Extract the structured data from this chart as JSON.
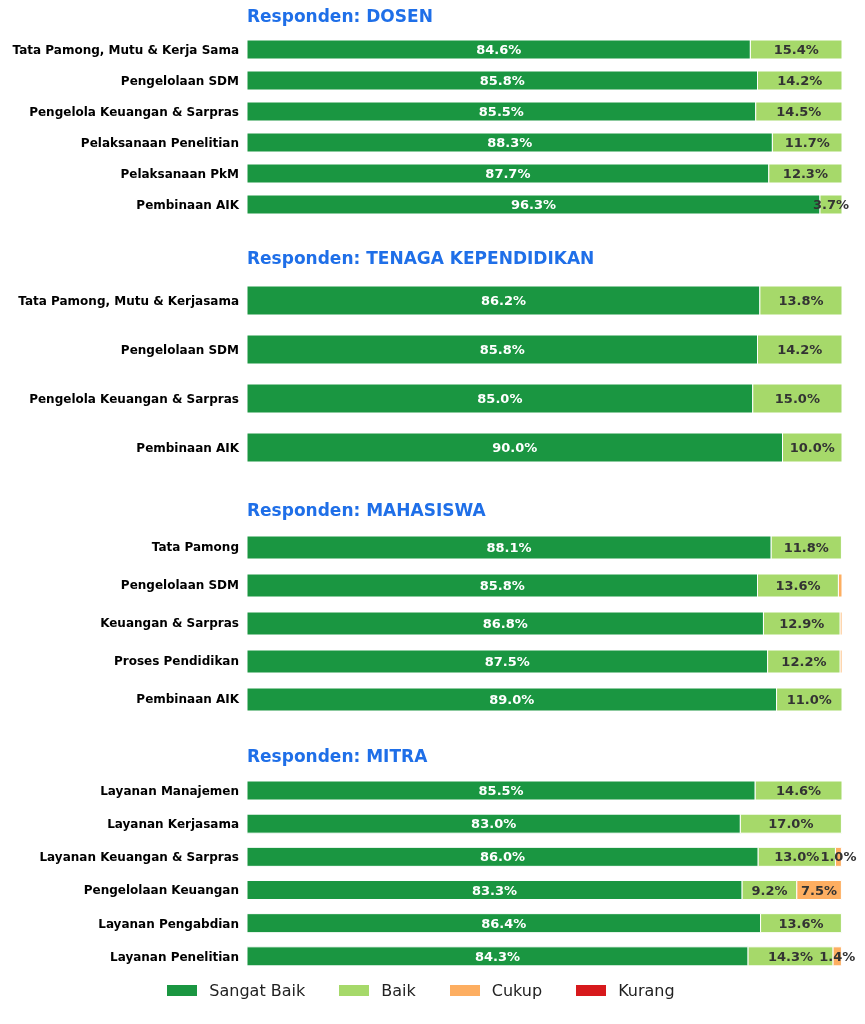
{
  "chart_data": [
    {
      "type": "bar",
      "orientation": "horizontal",
      "stacked": true,
      "title": "Responden: DOSEN",
      "legend": false,
      "categories": [
        "Tata Pamong, Mutu & Kerja Sama",
        "Pengelolaan SDM",
        "Pengelola Keuangan & Sarpras",
        "Pelaksanaan Penelitian",
        "Pelaksanaan PkM",
        "Pembinaan AIK"
      ],
      "series": [
        {
          "color": "#1a9641",
          "values": [
            84.6,
            85.8,
            85.5,
            88.3,
            87.7,
            96.3
          ],
          "value_labels": [
            "84.6%",
            "85.8%",
            "85.5%",
            "88.3%",
            "87.7%",
            "96.3%"
          ]
        },
        {
          "color": "#a6d96a",
          "values": [
            15.4,
            14.2,
            14.5,
            11.7,
            12.3,
            3.7
          ],
          "value_labels": [
            "15.4%",
            "14.2%",
            "14.5%",
            "11.7%",
            "12.3%",
            "3.7%"
          ]
        }
      ]
    },
    {
      "type": "bar",
      "orientation": "horizontal",
      "stacked": true,
      "title": "Responden: TENAGA KEPENDIDIKAN",
      "legend": false,
      "categories": [
        "Tata Pamong, Mutu & Kerjasama",
        "Pengelolaan SDM",
        "Pengelola Keuangan & Sarpras",
        "Pembinaan AIK"
      ],
      "series": [
        {
          "color": "#1a9641",
          "values": [
            86.2,
            85.8,
            85.0,
            90.0
          ],
          "value_labels": [
            "86.2%",
            "85.8%",
            "85.0%",
            "90.0%"
          ]
        },
        {
          "color": "#a6d96a",
          "values": [
            13.8,
            14.2,
            15.0,
            10.0
          ],
          "value_labels": [
            "13.8%",
            "14.2%",
            "15.0%",
            "10.0%"
          ]
        }
      ]
    },
    {
      "type": "bar",
      "orientation": "horizontal",
      "stacked": true,
      "title": "Responden: MAHASISWA",
      "legend": false,
      "categories": [
        "Tata Pamong",
        "Pengelolaan SDM",
        "Keuangan & Sarpras",
        "Proses Pendidikan",
        "Pembinaan AIK"
      ],
      "series": [
        {
          "color": "#1a9641",
          "values": [
            88.1,
            85.8,
            86.8,
            87.5,
            89.0
          ],
          "value_labels": [
            "88.1%",
            "85.8%",
            "86.8%",
            "87.5%",
            "89.0%"
          ]
        },
        {
          "color": "#a6d96a",
          "values": [
            11.8,
            13.6,
            12.9,
            12.2,
            11.0
          ],
          "value_labels": [
            "11.8%",
            "13.6%",
            "12.9%",
            "12.2%",
            "11.0%"
          ]
        },
        {
          "color": "#fdae61",
          "values": [
            null,
            0.6,
            0.3,
            0.3,
            null
          ],
          "value_labels": [
            null,
            null,
            null,
            null,
            null
          ]
        }
      ]
    },
    {
      "type": "bar",
      "orientation": "horizontal",
      "stacked": true,
      "title": "Responden: MITRA",
      "legend": "bottom",
      "categories": [
        "Layanan Manajemen",
        "Layanan Kerjasama",
        "Layanan Keuangan & Sarpras",
        "Pengelolaan Keuangan",
        "Layanan Pengabdian",
        "Layanan Penelitian"
      ],
      "series": [
        {
          "name": "Sangat Baik",
          "color": "#1a9641",
          "values": [
            85.5,
            83.0,
            86.0,
            83.3,
            86.4,
            84.3
          ],
          "value_labels": [
            "85.5%",
            "83.0%",
            "86.0%",
            "83.3%",
            "86.4%",
            "84.3%"
          ]
        },
        {
          "name": "Baik",
          "color": "#a6d96a",
          "values": [
            14.6,
            17.0,
            13.0,
            9.2,
            13.6,
            14.3
          ],
          "value_labels": [
            "14.6%",
            "17.0%",
            "13.0%",
            "9.2%",
            "13.6%",
            "14.3%"
          ]
        },
        {
          "name": "Cukup",
          "color": "#fdae61",
          "values": [
            null,
            null,
            1.0,
            7.5,
            null,
            1.4
          ],
          "value_labels": [
            null,
            null,
            "1.0%",
            "7.5%",
            null,
            "1.4%"
          ]
        },
        {
          "name": "Kurang",
          "color": "#d7191c",
          "values": [
            null,
            null,
            null,
            null,
            null,
            null
          ]
        }
      ]
    }
  ]
}
